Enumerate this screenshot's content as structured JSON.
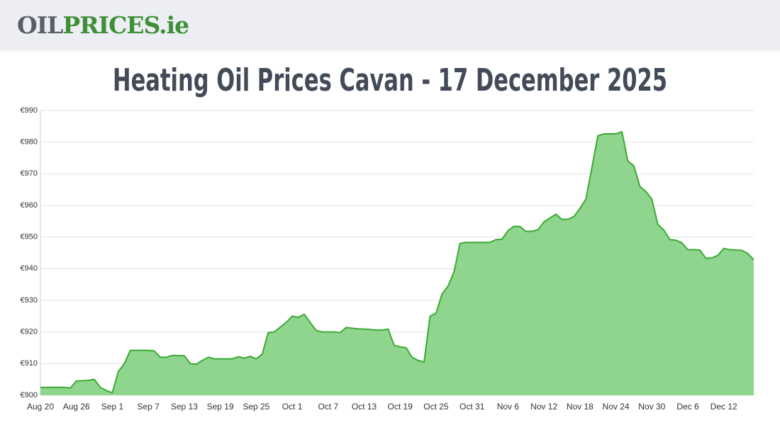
{
  "header": {
    "logo": [
      "OIL",
      "PRICES",
      ".ie"
    ]
  },
  "chart_data": {
    "type": "area",
    "title": "Heating Oil Prices Cavan - 17 December 2025",
    "categories": [
      "Aug 20",
      null,
      null,
      null,
      null,
      null,
      "Aug 26",
      null,
      null,
      null,
      null,
      null,
      "Sep 1",
      null,
      null,
      null,
      null,
      null,
      "Sep 7",
      null,
      null,
      null,
      null,
      null,
      "Sep 13",
      null,
      null,
      null,
      null,
      null,
      "Sep 19",
      null,
      null,
      null,
      null,
      null,
      "Sep 25",
      null,
      null,
      null,
      null,
      null,
      "Oct 1",
      null,
      null,
      null,
      null,
      null,
      "Oct 7",
      null,
      null,
      null,
      null,
      null,
      "Oct 13",
      null,
      null,
      null,
      null,
      null,
      "Oct 19",
      null,
      null,
      null,
      null,
      null,
      "Oct 25",
      null,
      null,
      null,
      null,
      null,
      "Oct 31",
      null,
      null,
      null,
      null,
      null,
      "Nov 6",
      null,
      null,
      null,
      null,
      null,
      "Nov 12",
      null,
      null,
      null,
      null,
      null,
      "Nov 18",
      null,
      null,
      null,
      null,
      null,
      "Nov 24",
      null,
      null,
      null,
      null,
      null,
      "Nov 30",
      null,
      null,
      null,
      null,
      null,
      "Dec 6",
      null,
      null,
      null,
      null,
      null,
      "Dec 12",
      null,
      null,
      null,
      null,
      null
    ],
    "series": [
      {
        "color": "#3aaa35",
        "fill": "#90d58d",
        "values": [
          902.5,
          902.5,
          902.5,
          902.5,
          902.5,
          902.3,
          904.5,
          904.6,
          904.7,
          905,
          902.5,
          901.5,
          900.8,
          907.5,
          910,
          914.2,
          914.2,
          914.2,
          914.2,
          914,
          912,
          912,
          912.6,
          912.5,
          912.5,
          910,
          909.8,
          911,
          912,
          911.5,
          911.5,
          911.5,
          911.5,
          912.2,
          911.7,
          912.3,
          911.5,
          913,
          919.8,
          920,
          921.5,
          923,
          925,
          924.6,
          925.6,
          923,
          920.5,
          920,
          920,
          920,
          919.8,
          921.4,
          921.2,
          921,
          920.9,
          920.8,
          920.6,
          920.6,
          920.9,
          915.8,
          915.3,
          915,
          912,
          911,
          910.5,
          925,
          926,
          932,
          934.5,
          939,
          948,
          948.3,
          948.3,
          948.3,
          948.3,
          948.3,
          949.2,
          949.3,
          952,
          953.4,
          953.3,
          951.8,
          951.8,
          952.3,
          954.8,
          956,
          957.2,
          955.6,
          955.6,
          956.5,
          959,
          962,
          972,
          982,
          982.6,
          982.6,
          982.6,
          983.3,
          974,
          972.5,
          966,
          964.4,
          962,
          954,
          952.2,
          949.2,
          949,
          948.2,
          946,
          946,
          945.9,
          943.3,
          943.4,
          944.2,
          946.4,
          946,
          945.9,
          945.8,
          944.8,
          942.8
        ]
      }
    ],
    "ylim": [
      900,
      990
    ],
    "yticks": [
      {
        "value": 900,
        "label": "€900"
      },
      {
        "value": 910,
        "label": "€910"
      },
      {
        "value": 920,
        "label": "€920"
      },
      {
        "value": 930,
        "label": "€930"
      },
      {
        "value": 940,
        "label": "€940"
      },
      {
        "value": 950,
        "label": "€950"
      },
      {
        "value": 960,
        "label": "€960"
      },
      {
        "value": 970,
        "label": "€970"
      },
      {
        "value": 980,
        "label": "€980"
      },
      {
        "value": 990,
        "label": "€990"
      }
    ],
    "grid": true
  }
}
